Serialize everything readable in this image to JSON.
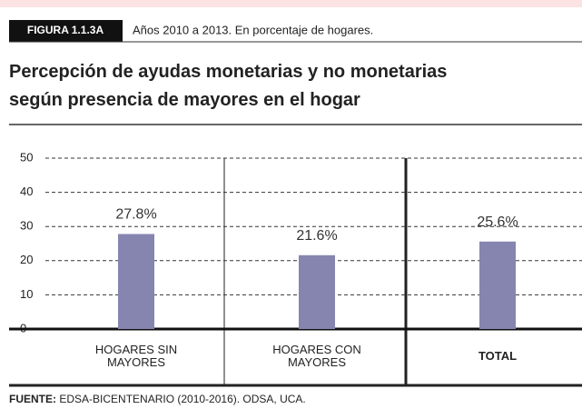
{
  "chart_data": {
    "type": "bar",
    "figure_label": "FIGURA 1.1.3A",
    "subtitle": "Años 2010 a 2013. En porcentaje de hogares.",
    "title_lines": [
      "Percepción de ayudas monetarias y no monetarias",
      "según presencia de mayores en el hogar"
    ],
    "categories": [
      "HOGARES SIN MAYORES",
      "HOGARES CON MAYORES",
      "TOTAL"
    ],
    "values": [
      27.8,
      21.6,
      25.6
    ],
    "value_labels": [
      "27.8%",
      "21.6%",
      "25.6%"
    ],
    "color": "#8585b0",
    "ylim": [
      0,
      50
    ],
    "yticks": [
      0,
      10,
      20,
      30,
      40,
      50
    ],
    "grid": true,
    "source_label": "FUENTE:",
    "source": "EDSA-BICENTENARIO (2010-2016). ODSA, UCA."
  }
}
